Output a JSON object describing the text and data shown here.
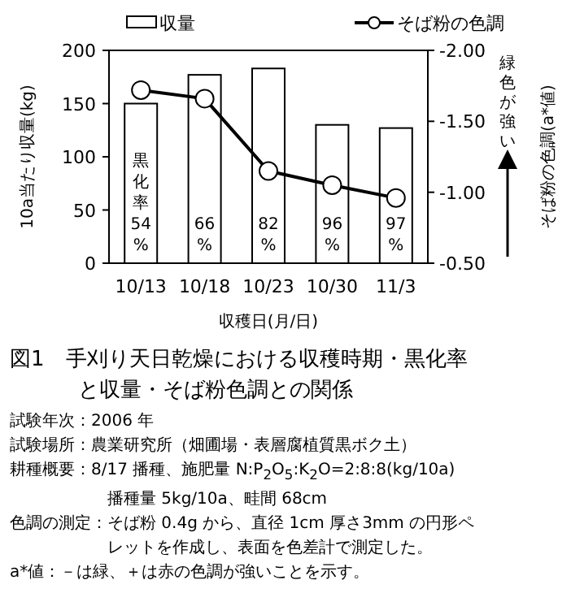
{
  "chart_data": {
    "type": "bar",
    "title": "図1　手刈り天日乾燥における収穫時期・黒化率と収量・そば粉色調との関係",
    "xlabel": "収穫日(月/日)",
    "ylabel": "10a当たり収量(kg)",
    "y2label": "そば粉の色調(a*値)",
    "categories": [
      "10/13",
      "10/18",
      "10/23",
      "10/30",
      "11/3"
    ],
    "series": [
      {
        "name": "収量",
        "color": "#ffffff",
        "values": [
          150,
          177,
          183,
          130,
          127
        ]
      },
      {
        "name": "そば粉の色調",
        "type": "line",
        "axis": "y2",
        "color": "#000000",
        "marker": "circle",
        "values": [
          -1.72,
          -1.66,
          -1.15,
          -1.05,
          -0.96
        ]
      }
    ],
    "ylim": [
      0,
      200
    ],
    "yticks": [
      0,
      50,
      100,
      150,
      200
    ],
    "y2lim": [
      -0.5,
      -2.0
    ],
    "y2ticks": [
      {
        "value": -0.5,
        "label": "-0.50"
      },
      {
        "value": -1.0,
        "label": "-1.00"
      },
      {
        "value": -1.5,
        "label": "-1.50"
      },
      {
        "value": -2.0,
        "label": "-2.00"
      }
    ],
    "legend": "top",
    "annotations": [
      "黒化率54%",
      "66%",
      "82%",
      "96%",
      "97%",
      "緑色が強い",
      "試験年次：2006 年",
      "試験場所：農業研究所（畑圃場・表層腐植質黒ボク土）",
      "耕種概要：8/17 播種、施肥量 N:P$_{2}$O$_{5}$:K$_{2}$O=2:8:8(kg/10a)　播種量 5kg/10a、畦間 68cm",
      "色調の測定：そば粉 0.4g から、直径 1cm 厚さ3mm の円形ペレットを作成し、表面を色差計で測定した。",
      "a*値：－は緑、＋は赤の色調が強いことを示す。"
    ]
  }
}
